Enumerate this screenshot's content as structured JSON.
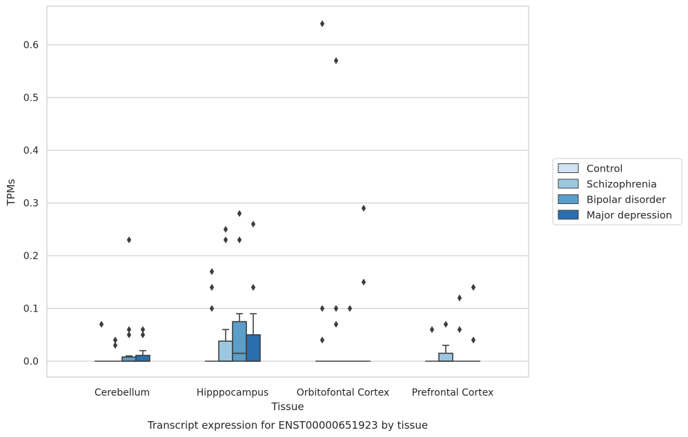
{
  "chart_data": {
    "type": "boxplot",
    "title": "",
    "caption": "Transcript expression for ENST00000651923 by tissue",
    "xlabel": "Tissue",
    "ylabel": "TPMs",
    "ylim": [
      -0.032,
      0.676
    ],
    "yticks": [
      0.0,
      0.1,
      0.2,
      0.3,
      0.4,
      0.5,
      0.6
    ],
    "ytick_labels": [
      "0.0",
      "0.1",
      "0.2",
      "0.3",
      "0.4",
      "0.5",
      "0.6"
    ],
    "categories": [
      "Cerebellum",
      "Hipppocampus",
      "Orbitofontal Cortex",
      "Prefrontal Cortex"
    ],
    "grid": true,
    "legend_position": "right",
    "series": [
      {
        "name": "Control",
        "color": "#d1e2f2",
        "boxes": [
          {
            "min": 0,
            "q1": 0,
            "median": 0,
            "q3": 0,
            "max": 0,
            "outliers": [
              0.07
            ]
          },
          {
            "min": 0,
            "q1": 0,
            "median": 0,
            "q3": 0,
            "max": 0,
            "outliers": [
              0.1,
              0.14,
              0.17
            ]
          },
          {
            "min": 0,
            "q1": 0,
            "median": 0,
            "q3": 0,
            "max": 0,
            "outliers": [
              0.04,
              0.1,
              0.64
            ]
          },
          {
            "min": 0,
            "q1": 0,
            "median": 0,
            "q3": 0,
            "max": 0,
            "outliers": [
              0.06
            ]
          }
        ]
      },
      {
        "name": "Schizophrenia",
        "color": "#9ac8e0",
        "boxes": [
          {
            "min": 0,
            "q1": 0,
            "median": 0,
            "q3": 0,
            "max": 0,
            "outliers": [
              0.03,
              0.04
            ]
          },
          {
            "min": 0,
            "q1": 0,
            "median": 0,
            "q3": 0.038,
            "max": 0.06,
            "outliers": [
              0.23,
              0.25
            ]
          },
          {
            "min": 0,
            "q1": 0,
            "median": 0,
            "q3": 0,
            "max": 0,
            "outliers": [
              0.07,
              0.1,
              0.57
            ]
          },
          {
            "min": 0,
            "q1": 0,
            "median": 0,
            "q3": 0.015,
            "max": 0.03,
            "outliers": [
              0.07
            ]
          }
        ]
      },
      {
        "name": "Bipolar disorder",
        "color": "#5a9ec9",
        "boxes": [
          {
            "min": 0,
            "q1": 0,
            "median": 0,
            "q3": 0.008,
            "max": 0.01,
            "outliers": [
              0.05,
              0.06,
              0.23
            ]
          },
          {
            "min": 0,
            "q1": 0,
            "median": 0.015,
            "q3": 0.075,
            "max": 0.09,
            "outliers": [
              0.23,
              0.28
            ]
          },
          {
            "min": 0,
            "q1": 0,
            "median": 0,
            "q3": 0,
            "max": 0,
            "outliers": [
              0.1
            ]
          },
          {
            "min": 0,
            "q1": 0,
            "median": 0,
            "q3": 0,
            "max": 0,
            "outliers": [
              0.06,
              0.12
            ]
          }
        ]
      },
      {
        "name": "Major depression",
        "color": "#2a6eae",
        "boxes": [
          {
            "min": 0,
            "q1": 0,
            "median": 0,
            "q3": 0.011,
            "max": 0.02,
            "outliers": [
              0.05,
              0.06
            ]
          },
          {
            "min": 0,
            "q1": 0,
            "median": 0,
            "q3": 0.05,
            "max": 0.09,
            "outliers": [
              0.14,
              0.26
            ]
          },
          {
            "min": 0,
            "q1": 0,
            "median": 0,
            "q3": 0,
            "max": 0,
            "outliers": [
              0.15,
              0.29
            ]
          },
          {
            "min": 0,
            "q1": 0,
            "median": 0,
            "q3": 0,
            "max": 0,
            "outliers": [
              0.04,
              0.14
            ]
          }
        ]
      }
    ],
    "colors": {
      "grid": "#d0d0d0",
      "frame": "#cccccc",
      "edge": "#3d3d3d",
      "text": "#262626"
    }
  }
}
